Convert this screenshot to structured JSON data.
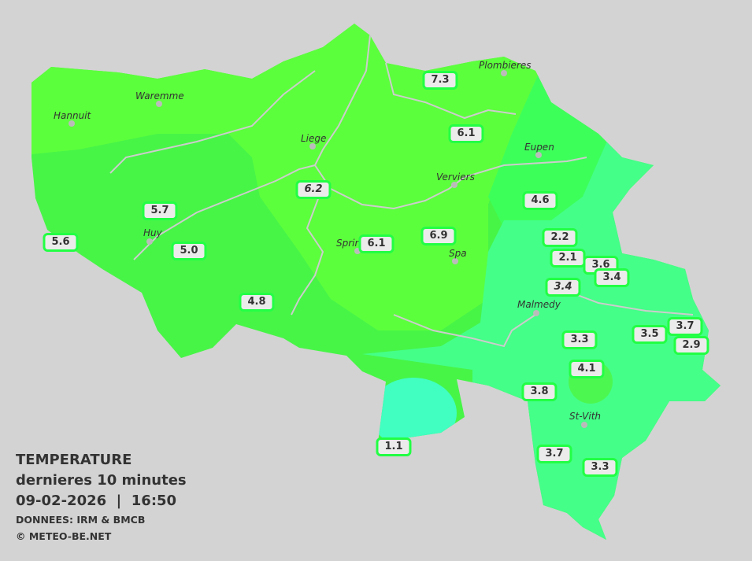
{
  "colors": {
    "background": "#d3d3d3",
    "warm": "#5cff3c",
    "mid": "#47f547",
    "east": "#3dff5a",
    "cool": "#44ff88",
    "cold": "#40ffc0",
    "label_border": "#22ff44"
  },
  "legend": {
    "title": "TEMPERATURE",
    "subtitle": "dernieres 10 minutes",
    "datetime": "09-02-2026  |  16:50",
    "source": "DONNEES: IRM & BMCB",
    "copyright": "© METEO-BE.NET"
  },
  "cities": [
    {
      "name": "Hannuit"
    },
    {
      "name": "Waremme"
    },
    {
      "name": "Liege"
    },
    {
      "name": "Plombieres"
    },
    {
      "name": "Eupen"
    },
    {
      "name": "Verviers"
    },
    {
      "name": "Huy"
    },
    {
      "name": "Sprin"
    },
    {
      "name": "Spa"
    },
    {
      "name": "Malmedy"
    },
    {
      "name": "St-Vith"
    }
  ],
  "stations": [
    {
      "value": "7.3"
    },
    {
      "value": "6.1"
    },
    {
      "value": "6.2",
      "italic": true
    },
    {
      "value": "4.6"
    },
    {
      "value": "5.7"
    },
    {
      "value": "5.6"
    },
    {
      "value": "5.0"
    },
    {
      "value": "6.1"
    },
    {
      "value": "6.9"
    },
    {
      "value": "2.2"
    },
    {
      "value": "2.1"
    },
    {
      "value": "3.6"
    },
    {
      "value": "3.4"
    },
    {
      "value": "3.4",
      "italic": true
    },
    {
      "value": "4.8"
    },
    {
      "value": "3.3"
    },
    {
      "value": "3.5"
    },
    {
      "value": "3.7"
    },
    {
      "value": "2.9"
    },
    {
      "value": "4.1"
    },
    {
      "value": "3.8"
    },
    {
      "value": "1.1"
    },
    {
      "value": "3.7"
    },
    {
      "value": "3.3"
    }
  ]
}
